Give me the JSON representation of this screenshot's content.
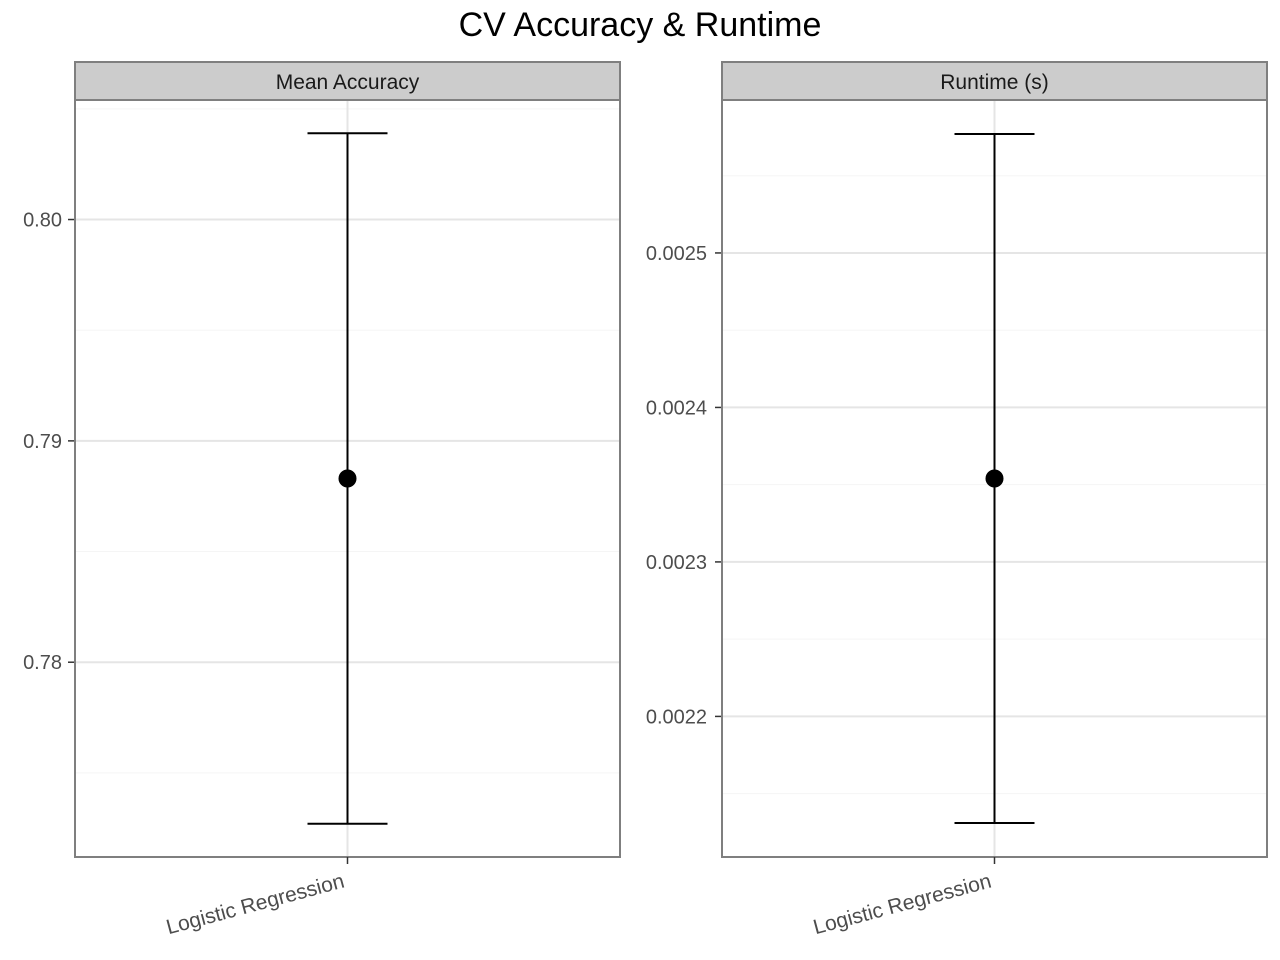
{
  "title": "CV Accuracy & Runtime",
  "chart_data": [
    {
      "type": "scatter",
      "facet": "Mean Accuracy",
      "categories": [
        "Logistic Regression"
      ],
      "points": [
        {
          "category": "Logistic Regression",
          "value": 0.7883,
          "ymin": 0.7727,
          "ymax": 0.8039
        }
      ],
      "y_ticks": [
        0.78,
        0.79,
        0.8
      ],
      "y_tick_labels": [
        "0.78",
        "0.79",
        "0.80"
      ],
      "ylim": [
        0.7712,
        0.8054
      ],
      "grid": true,
      "xlabel": "",
      "ylabel": ""
    },
    {
      "type": "scatter",
      "facet": "Runtime (s)",
      "categories": [
        "Logistic Regression"
      ],
      "points": [
        {
          "category": "Logistic Regression",
          "value": 0.002354,
          "ymin": 0.002131,
          "ymax": 0.002577
        }
      ],
      "y_ticks": [
        0.0022,
        0.0023,
        0.0024,
        0.0025
      ],
      "y_tick_labels": [
        "0.0022",
        "0.0023",
        "0.0024",
        "0.0025"
      ],
      "ylim": [
        0.002109,
        0.002599
      ],
      "grid": true,
      "xlabel": "",
      "ylabel": ""
    }
  ],
  "colors": {
    "strip_fill": "#cccccc",
    "panel_border": "#7f7f7f",
    "grid_major": "#e5e5e5",
    "grid_minor": "#f5f5f5",
    "mark": "#000000",
    "tick_text": "#4d4d4d"
  }
}
